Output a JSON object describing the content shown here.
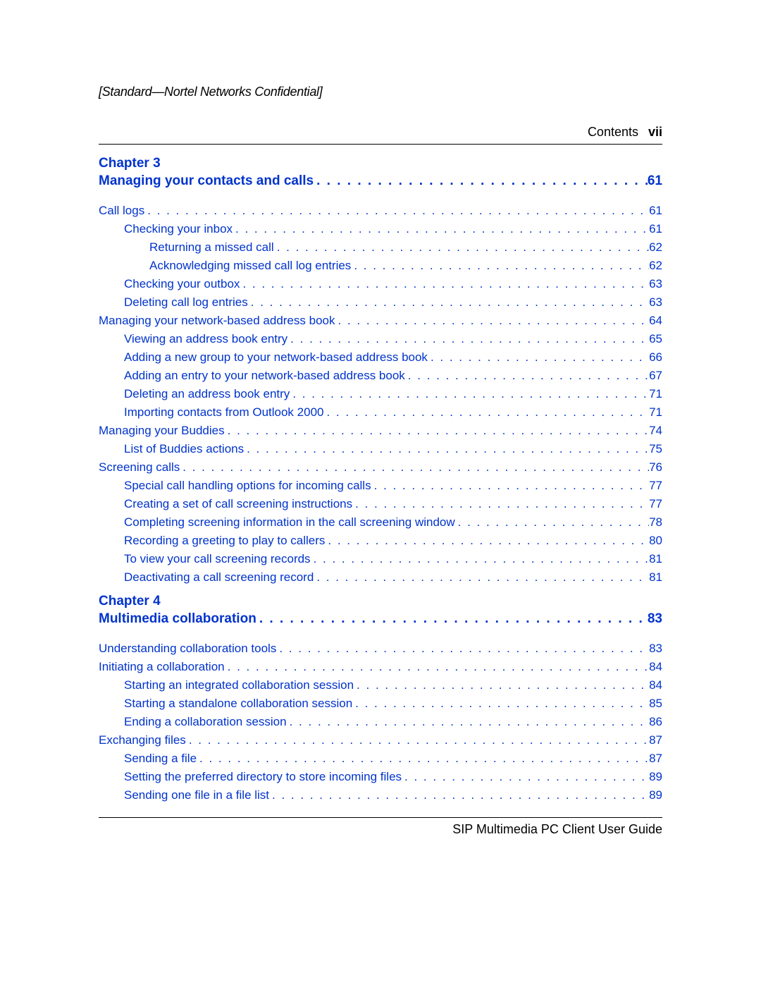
{
  "header": {
    "confidential": "[Standard—Nortel Networks Confidential]",
    "contents_label": "Contents",
    "page_roman": "vii"
  },
  "footer": {
    "guide_title": "SIP Multimedia PC Client User Guide"
  },
  "colors": {
    "link": "#0033cc",
    "text": "#000000",
    "rule": "#000000",
    "background": "#ffffff"
  },
  "typography": {
    "body_family": "Arial, Helvetica, sans-serif",
    "body_size_pt": 12,
    "chapter_weight": "700",
    "chapter_size_pt": 13,
    "confidential_style": "italic"
  },
  "chapters": [
    {
      "label": "Chapter 3",
      "title": "Managing your contacts and calls",
      "page": "61",
      "entries": [
        {
          "text": "Call logs",
          "page": "61",
          "level": 0
        },
        {
          "text": "Checking your inbox",
          "page": "61",
          "level": 1
        },
        {
          "text": "Returning a missed call",
          "page": "62",
          "level": 2
        },
        {
          "text": "Acknowledging missed call log entries",
          "page": "62",
          "level": 2
        },
        {
          "text": "Checking your outbox",
          "page": "63",
          "level": 1
        },
        {
          "text": "Deleting call log entries",
          "page": "63",
          "level": 1
        },
        {
          "text": "Managing your network-based address book",
          "page": "64",
          "level": 0
        },
        {
          "text": "Viewing an address book entry",
          "page": "65",
          "level": 1
        },
        {
          "text": "Adding a new group to your network-based address book",
          "page": "66",
          "level": 1
        },
        {
          "text": "Adding an entry to your network-based address book",
          "page": "67",
          "level": 1
        },
        {
          "text": "Deleting an address book entry",
          "page": "71",
          "level": 1
        },
        {
          "text": "Importing contacts from Outlook 2000",
          "page": "71",
          "level": 1
        },
        {
          "text": "Managing your Buddies",
          "page": "74",
          "level": 0
        },
        {
          "text": "List of Buddies actions",
          "page": "75",
          "level": 1
        },
        {
          "text": "Screening calls",
          "page": "76",
          "level": 0
        },
        {
          "text": "Special call handling options for incoming calls",
          "page": "77",
          "level": 1
        },
        {
          "text": "Creating a set of call screening instructions",
          "page": "77",
          "level": 1
        },
        {
          "text": "Completing screening information in the call screening window",
          "page": "78",
          "level": 1
        },
        {
          "text": "Recording a greeting to play to callers",
          "page": "80",
          "level": 1
        },
        {
          "text": "To view your call screening records",
          "page": "81",
          "level": 1
        },
        {
          "text": "Deactivating a call screening record",
          "page": "81",
          "level": 1
        }
      ]
    },
    {
      "label": "Chapter 4",
      "title": "Multimedia collaboration",
      "page": "83",
      "entries": [
        {
          "text": "Understanding collaboration tools",
          "page": "83",
          "level": 0
        },
        {
          "text": "Initiating a collaboration",
          "page": "84",
          "level": 0
        },
        {
          "text": "Starting an integrated collaboration session",
          "page": "84",
          "level": 1
        },
        {
          "text": "Starting a standalone collaboration session",
          "page": "85",
          "level": 1
        },
        {
          "text": "Ending a collaboration session",
          "page": "86",
          "level": 1
        },
        {
          "text": "Exchanging files",
          "page": "87",
          "level": 0
        },
        {
          "text": "Sending a file",
          "page": "87",
          "level": 1
        },
        {
          "text": "Setting the preferred directory to store incoming files",
          "page": "89",
          "level": 1
        },
        {
          "text": "Sending one file in a file list",
          "page": "89",
          "level": 1
        }
      ]
    }
  ]
}
